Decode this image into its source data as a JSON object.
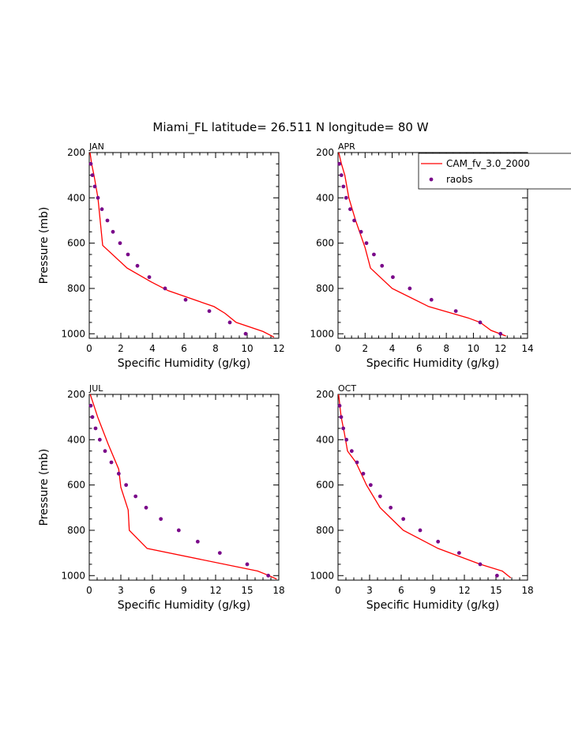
{
  "title": "Miami_FL  latitude= 26.511 N longitude= 80 W",
  "colors": {
    "model": "#ff0000",
    "obs": "#7a0a8a"
  },
  "legend": {
    "model": "CAM_fv_3.0_2000",
    "obs": "raobs"
  },
  "chart_data": [
    {
      "type": "line",
      "panel": "JAN",
      "xlabel": "Specific Humidity (g/kg)",
      "ylabel": "Pressure (mb)",
      "xlim": [
        0,
        12
      ],
      "ylim": [
        1020,
        200
      ],
      "x_ticks": [
        0,
        2,
        4,
        6,
        8,
        10,
        12
      ],
      "y_ticks": [
        200,
        400,
        600,
        800,
        1000
      ],
      "series": [
        {
          "name": "CAM_fv_3.0_2000",
          "kind": "line",
          "x": [
            0.05,
            0.15,
            0.3,
            0.55,
            0.85,
            2.4,
            3.9,
            5.0,
            7.9,
            8.6,
            9.3,
            11.0,
            11.7
          ],
          "y": [
            200,
            250,
            300,
            400,
            610,
            710,
            770,
            810,
            880,
            910,
            950,
            990,
            1015
          ]
        },
        {
          "name": "raobs",
          "kind": "scatter",
          "x": [
            0.1,
            0.2,
            0.35,
            0.55,
            0.8,
            1.15,
            1.5,
            1.95,
            2.45,
            3.05,
            3.8,
            4.8,
            6.1,
            7.6,
            8.9,
            9.9
          ],
          "y": [
            250,
            300,
            350,
            400,
            450,
            500,
            550,
            600,
            650,
            700,
            750,
            800,
            850,
            900,
            950,
            1000
          ]
        }
      ]
    },
    {
      "type": "line",
      "panel": "APR",
      "xlabel": "Specific Humidity (g/kg)",
      "ylabel": "",
      "xlim": [
        0,
        14
      ],
      "ylim": [
        1020,
        200
      ],
      "x_ticks": [
        0,
        2,
        4,
        6,
        8,
        10,
        12,
        14
      ],
      "y_ticks": [
        200,
        400,
        600,
        800,
        1000
      ],
      "series": [
        {
          "name": "CAM_fv_3.0_2000",
          "kind": "line",
          "x": [
            0.05,
            0.25,
            0.5,
            0.8,
            1.3,
            2.0,
            2.4,
            4.0,
            6.7,
            9.6,
            10.5,
            11.3,
            12.4
          ],
          "y": [
            200,
            250,
            300,
            400,
            500,
            620,
            710,
            800,
            880,
            930,
            950,
            985,
            1010
          ]
        },
        {
          "name": "raobs",
          "kind": "scatter",
          "x": [
            0.1,
            0.25,
            0.4,
            0.6,
            0.9,
            1.2,
            1.7,
            2.1,
            2.65,
            3.25,
            4.05,
            5.3,
            6.9,
            8.7,
            10.5,
            12.0
          ],
          "y": [
            250,
            300,
            350,
            400,
            450,
            500,
            550,
            600,
            650,
            700,
            750,
            800,
            850,
            900,
            950,
            1000
          ]
        }
      ]
    },
    {
      "type": "line",
      "panel": "JUL",
      "xlabel": "Specific Humidity (g/kg)",
      "ylabel": "Pressure (mb)",
      "xlim": [
        0,
        18
      ],
      "ylim": [
        1020,
        200
      ],
      "x_ticks": [
        0,
        3,
        6,
        9,
        12,
        15,
        18
      ],
      "y_ticks": [
        200,
        400,
        600,
        800,
        1000
      ],
      "series": [
        {
          "name": "CAM_fv_3.0_2000",
          "kind": "line",
          "x": [
            0.1,
            0.8,
            1.8,
            2.8,
            3.0,
            3.7,
            3.8,
            5.5,
            16.0,
            16.8,
            17.8
          ],
          "y": [
            200,
            300,
            420,
            530,
            610,
            710,
            800,
            880,
            980,
            995,
            1015
          ]
        },
        {
          "name": "raobs",
          "kind": "scatter",
          "x": [
            0.15,
            0.3,
            0.6,
            1.0,
            1.5,
            2.1,
            2.8,
            3.5,
            4.4,
            5.4,
            6.8,
            8.5,
            10.3,
            12.4,
            15.0,
            17.0
          ],
          "y": [
            250,
            300,
            350,
            400,
            450,
            500,
            550,
            600,
            650,
            700,
            750,
            800,
            850,
            900,
            950,
            1000
          ]
        }
      ]
    },
    {
      "type": "line",
      "panel": "OCT",
      "xlabel": "Specific Humidity (g/kg)",
      "ylabel": "",
      "xlim": [
        0,
        18
      ],
      "ylim": [
        1020,
        200
      ],
      "x_ticks": [
        0,
        3,
        6,
        9,
        12,
        15,
        18
      ],
      "y_ticks": [
        200,
        400,
        600,
        800,
        1000
      ],
      "series": [
        {
          "name": "CAM_fv_3.0_2000",
          "kind": "line",
          "x": [
            0.05,
            0.3,
            0.6,
            0.9,
            1.7,
            2.7,
            4.0,
            6.2,
            9.5,
            13.5,
            15.6,
            16.4
          ],
          "y": [
            200,
            300,
            370,
            450,
            500,
            600,
            700,
            800,
            880,
            950,
            980,
            1010
          ]
        },
        {
          "name": "raobs",
          "kind": "scatter",
          "x": [
            0.15,
            0.3,
            0.5,
            0.8,
            1.3,
            1.8,
            2.4,
            3.1,
            4.0,
            5.0,
            6.2,
            7.8,
            9.5,
            11.5,
            13.5,
            15.1
          ],
          "y": [
            250,
            300,
            350,
            400,
            450,
            500,
            550,
            600,
            650,
            700,
            750,
            800,
            850,
            900,
            950,
            1000
          ]
        }
      ]
    }
  ]
}
